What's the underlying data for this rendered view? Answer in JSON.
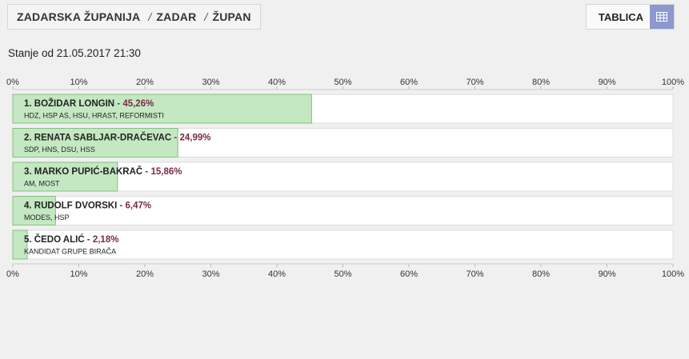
{
  "breadcrumb": {
    "items": [
      "ZADARSKA ŽUPANIJA",
      "ZADAR",
      "ŽUPAN"
    ],
    "separator": "/"
  },
  "view_toggle": {
    "label": "TABLICA",
    "icon": "grid-icon"
  },
  "status": {
    "text": "Stanje od 21.05.2017 21:30"
  },
  "colors": {
    "bar_fill": "#c4e8c2",
    "bar_stroke": "#84bf80",
    "track": "#ffffff",
    "percent_text": "#7a2a46",
    "icon_bg": "#8c98cf"
  },
  "chart_data": {
    "type": "bar",
    "orientation": "horizontal",
    "xlim": [
      0,
      100
    ],
    "ticks": [
      "0%",
      "10%",
      "20%",
      "30%",
      "40%",
      "50%",
      "60%",
      "70%",
      "80%",
      "90%",
      "100%"
    ],
    "candidates": [
      {
        "rank": "1.",
        "name": "BOŽIDAR LONGIN",
        "percent_label": "45,26%",
        "value": 45.26,
        "parties": "HDZ, HSP AS, HSU, HRAST, REFORMISTI"
      },
      {
        "rank": "2.",
        "name": "RENATA SABLJAR-DRAČEVAC",
        "percent_label": "24,99%",
        "value": 24.99,
        "parties": "SDP, HNS, DSU, HSS"
      },
      {
        "rank": "3.",
        "name": "MARKO PUPIĆ-BAKRAČ",
        "percent_label": "15,86%",
        "value": 15.86,
        "parties": "AM, MOST"
      },
      {
        "rank": "4.",
        "name": "RUDOLF DVORSKI",
        "percent_label": "6,47%",
        "value": 6.47,
        "parties": "MODES, HSP"
      },
      {
        "rank": "5.",
        "name": "ČEDO ALIĆ",
        "percent_label": "2,18%",
        "value": 2.18,
        "parties": "KANDIDAT GRUPE BIRAČA"
      }
    ]
  }
}
